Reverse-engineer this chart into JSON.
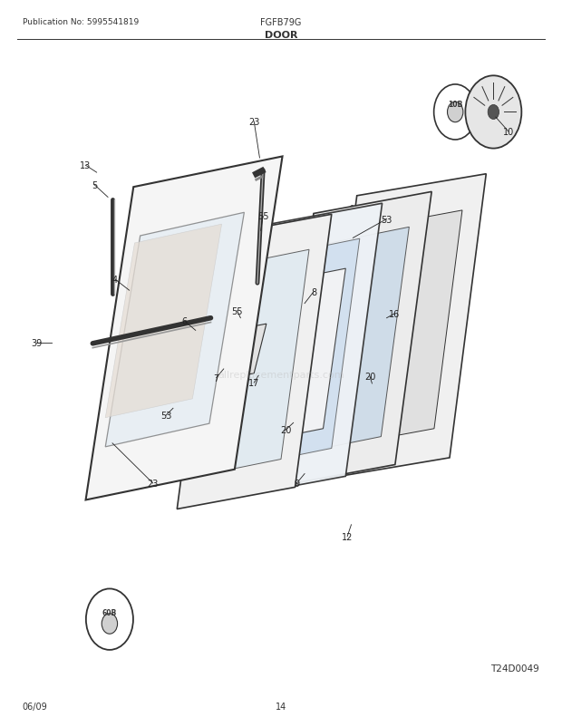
{
  "title": "DOOR",
  "pub_no": "Publication No: 5995541819",
  "model": "FGFB79G",
  "diagram_id": "T24D0049",
  "page": "14",
  "date": "06/09",
  "bg_color": "#ffffff",
  "line_color": "#333333",
  "label_color": "#222222",
  "watermark": "allreplacementparts.com"
}
